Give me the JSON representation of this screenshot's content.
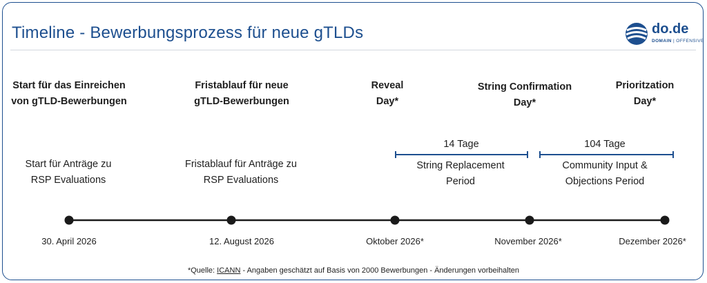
{
  "header": {
    "title": "Timeline - Bewerbungsprozess für neue gTLDs"
  },
  "logo": {
    "name": "do.de",
    "sub_bold": "DOMAIN",
    "sub_rest": "OFFENSIVE"
  },
  "milestones": [
    {
      "head1": "Start für das Einreichen",
      "head2": "von gTLD-Bewerbungen",
      "sub1": "Start für Anträge zu",
      "sub2": "RSP Evaluations",
      "date": "30. April 2026"
    },
    {
      "head1": "Fristablauf für neue",
      "head2": "gTLD-Bewerbungen",
      "sub1": "Fristablauf für Anträge zu",
      "sub2": "RSP Evaluations",
      "date": "12. August 2026"
    },
    {
      "head1": "Reveal",
      "head2": "Day*",
      "date": "Oktober 2026*"
    },
    {
      "head1": "String Confirmation",
      "head2": "Day*",
      "date": "November 2026*"
    },
    {
      "head1": "Prioritzation",
      "head2": "Day*",
      "date": "Dezember 2026*"
    }
  ],
  "periods": [
    {
      "duration": "14 Tage",
      "label1": "String Replacement",
      "label2": "Period"
    },
    {
      "duration": "104 Tage",
      "label1": "Community Input &",
      "label2": "Objections Period"
    }
  ],
  "footer": {
    "pre": "*Quelle: ",
    "link": "ICANN",
    "post": " - Angaben geschätzt auf Basis von 2000 Bewerbungen - Änderungen vorbeihalten"
  },
  "colors": {
    "accent": "#1d4f8f",
    "line": "#1a1a1a"
  }
}
